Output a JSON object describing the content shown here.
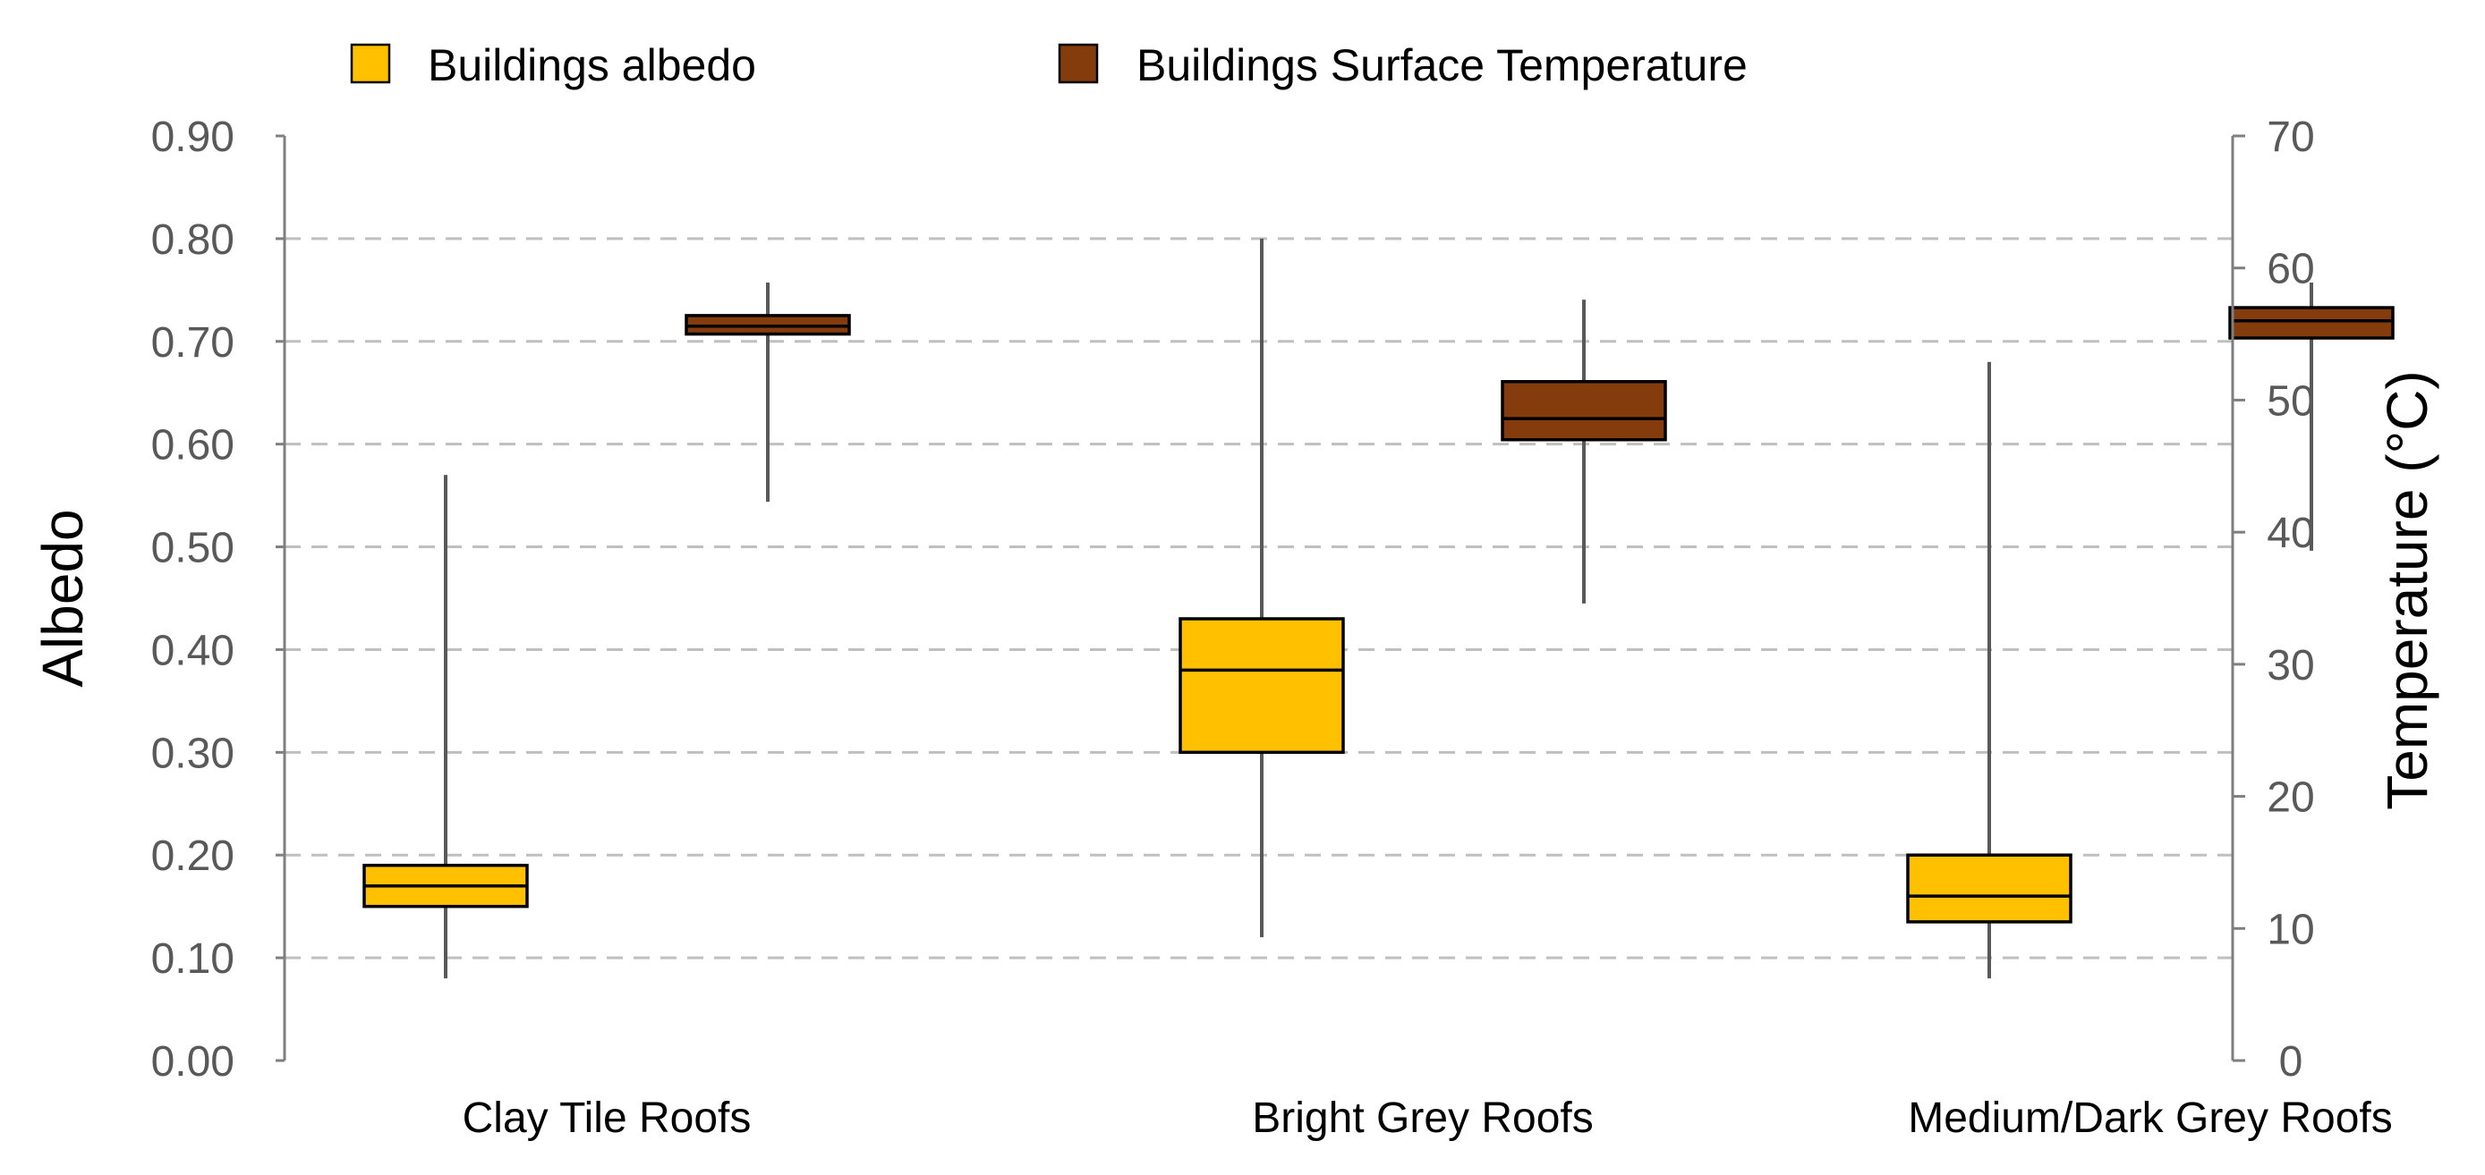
{
  "chart_data": {
    "type": "boxplot",
    "title": "",
    "categories": [
      "Clay Tile Roofs",
      "Bright Grey Roofs",
      "Medium/Dark Grey Roofs"
    ],
    "ylabel": "Albedo",
    "y2label": "Temperature (°C)",
    "ylim": [
      0,
      0.9
    ],
    "y2lim": [
      0,
      70
    ],
    "yticks": [
      "0.00",
      "0.10",
      "0.20",
      "0.30",
      "0.40",
      "0.50",
      "0.60",
      "0.70",
      "0.80",
      "0.90"
    ],
    "y2ticks": [
      "0",
      "10",
      "20",
      "30",
      "40",
      "50",
      "60",
      "70"
    ],
    "grid": "horizontal dashed",
    "legend_position": "top",
    "series": [
      {
        "name": "Buildings albedo",
        "axis": "left",
        "color": "#FFC000",
        "boxes": [
          {
            "category": "Clay Tile Roofs",
            "min": 0.08,
            "q1": 0.15,
            "median": 0.17,
            "q3": 0.19,
            "max": 0.57
          },
          {
            "category": "Bright Grey Roofs",
            "min": 0.12,
            "q1": 0.3,
            "median": 0.38,
            "q3": 0.43,
            "max": 0.8
          },
          {
            "category": "Medium/Dark Grey Roofs",
            "min": 0.08,
            "q1": 0.135,
            "median": 0.16,
            "q3": 0.2,
            "max": 0.68
          }
        ]
      },
      {
        "name": "Buildings Surface Temperature",
        "axis": "right",
        "color": "#843C0C",
        "boxes": [
          {
            "category": "Clay Tile Roofs",
            "min": 42.3,
            "q1": 55.0,
            "median": 55.6,
            "q3": 56.4,
            "max": 58.9
          },
          {
            "category": "Bright Grey Roofs",
            "min": 34.6,
            "q1": 47.0,
            "median": 48.6,
            "q3": 51.4,
            "max": 57.6
          },
          {
            "category": "Medium/Dark Grey Roofs",
            "min": 38.6,
            "q1": 54.7,
            "median": 56.0,
            "q3": 57.0,
            "max": 58.9
          }
        ]
      }
    ]
  }
}
